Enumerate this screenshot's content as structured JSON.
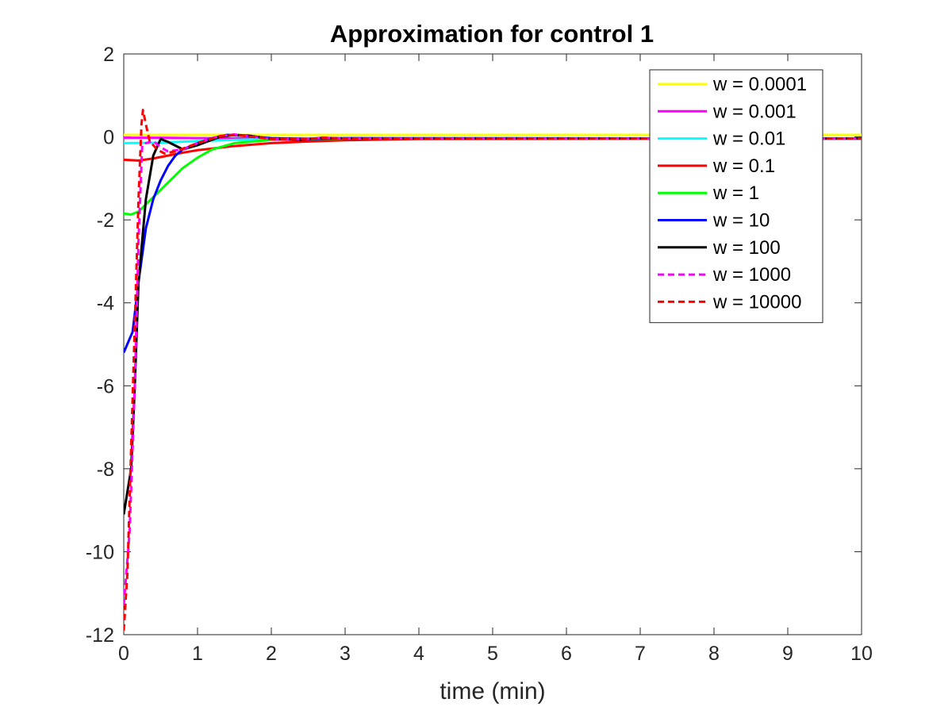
{
  "chart_data": {
    "type": "line",
    "title": "Approximation for control 1",
    "xlabel": "time (min)",
    "ylabel": "",
    "xlim": [
      0,
      10
    ],
    "ylim": [
      -12,
      2
    ],
    "xticks": [
      "0",
      "1",
      "2",
      "3",
      "4",
      "5",
      "6",
      "7",
      "8",
      "9",
      "10"
    ],
    "yticks": [
      "2",
      "0",
      "-2",
      "-4",
      "-6",
      "-8",
      "-10",
      "-12"
    ],
    "grid": false,
    "legend_position": "top-right",
    "series": [
      {
        "name": "w = 0.0001",
        "color": "#ffff00",
        "dash": "solid",
        "points": [
          [
            0,
            0.05
          ],
          [
            10,
            0.05
          ]
        ]
      },
      {
        "name": "w = 0.001",
        "color": "#ff00ff",
        "dash": "solid",
        "points": [
          [
            0,
            -0.02
          ],
          [
            0.5,
            -0.02
          ],
          [
            1.0,
            -0.03
          ],
          [
            2.0,
            -0.04
          ],
          [
            10,
            -0.04
          ]
        ]
      },
      {
        "name": "w = 0.01",
        "color": "#00ffff",
        "dash": "solid",
        "points": [
          [
            0,
            -0.15
          ],
          [
            0.5,
            -0.14
          ],
          [
            1.0,
            -0.1
          ],
          [
            1.5,
            -0.07
          ],
          [
            2.0,
            -0.05
          ],
          [
            3.0,
            -0.04
          ],
          [
            10,
            -0.04
          ]
        ]
      },
      {
        "name": "w = 0.1",
        "color": "#ff0000",
        "dash": "solid",
        "points": [
          [
            0,
            -0.55
          ],
          [
            0.2,
            -0.57
          ],
          [
            0.4,
            -0.52
          ],
          [
            0.6,
            -0.45
          ],
          [
            0.8,
            -0.38
          ],
          [
            1.0,
            -0.32
          ],
          [
            1.5,
            -0.22
          ],
          [
            2.0,
            -0.15
          ],
          [
            2.5,
            -0.11
          ],
          [
            3.0,
            -0.08
          ],
          [
            4.0,
            -0.05
          ],
          [
            10,
            -0.04
          ]
        ]
      },
      {
        "name": "w = 1",
        "color": "#00ff00",
        "dash": "solid",
        "points": [
          [
            0,
            -1.85
          ],
          [
            0.1,
            -1.87
          ],
          [
            0.2,
            -1.8
          ],
          [
            0.4,
            -1.45
          ],
          [
            0.6,
            -1.1
          ],
          [
            0.8,
            -0.75
          ],
          [
            1.0,
            -0.5
          ],
          [
            1.2,
            -0.3
          ],
          [
            1.5,
            -0.15
          ],
          [
            2.0,
            -0.07
          ],
          [
            3.0,
            -0.04
          ],
          [
            10,
            -0.04
          ]
        ]
      },
      {
        "name": "w = 10",
        "color": "#0000ff",
        "dash": "solid",
        "points": [
          [
            0,
            -5.2
          ],
          [
            0.12,
            -4.7
          ],
          [
            0.2,
            -3.5
          ],
          [
            0.3,
            -2.2
          ],
          [
            0.4,
            -1.5
          ],
          [
            0.5,
            -1.05
          ],
          [
            0.6,
            -0.7
          ],
          [
            0.7,
            -0.45
          ],
          [
            0.8,
            -0.3
          ],
          [
            1.0,
            -0.15
          ],
          [
            1.2,
            -0.03
          ],
          [
            1.4,
            0.05
          ],
          [
            1.6,
            0.03
          ],
          [
            2.0,
            -0.03
          ],
          [
            2.5,
            -0.05
          ],
          [
            3.0,
            -0.03
          ],
          [
            10,
            -0.04
          ]
        ]
      },
      {
        "name": "w = 100",
        "color": "#000000",
        "dash": "solid",
        "points": [
          [
            0,
            -9.1
          ],
          [
            0.1,
            -8.0
          ],
          [
            0.15,
            -6.0
          ],
          [
            0.2,
            -3.5
          ],
          [
            0.3,
            -1.5
          ],
          [
            0.4,
            -0.45
          ],
          [
            0.5,
            -0.05
          ],
          [
            0.6,
            -0.12
          ],
          [
            0.8,
            -0.3
          ],
          [
            1.0,
            -0.2
          ],
          [
            1.3,
            0.0
          ],
          [
            1.5,
            0.05
          ],
          [
            1.7,
            0.03
          ],
          [
            2.0,
            -0.05
          ],
          [
            2.4,
            -0.07
          ],
          [
            2.7,
            -0.02
          ],
          [
            3.0,
            -0.04
          ],
          [
            10,
            -0.04
          ]
        ]
      },
      {
        "name": "w = 1000",
        "color": "#ff00ff",
        "dash": "dashed",
        "points": [
          [
            0,
            -11.3
          ],
          [
            0.08,
            -9.5
          ],
          [
            0.15,
            -6.0
          ],
          [
            0.2,
            -2.5
          ],
          [
            0.25,
            -0.2
          ],
          [
            0.3,
            -0.15
          ],
          [
            0.4,
            -0.1
          ],
          [
            0.5,
            -0.25
          ],
          [
            0.6,
            -0.35
          ],
          [
            0.8,
            -0.3
          ],
          [
            1.0,
            -0.15
          ],
          [
            1.3,
            0.02
          ],
          [
            1.5,
            0.06
          ],
          [
            2.0,
            -0.05
          ],
          [
            2.5,
            -0.05
          ],
          [
            2.7,
            -0.02
          ],
          [
            3.0,
            -0.04
          ],
          [
            10,
            -0.04
          ]
        ]
      },
      {
        "name": "w = 10000",
        "color": "#ff0000",
        "dash": "dashed",
        "points": [
          [
            0,
            -11.9
          ],
          [
            0.05,
            -10.5
          ],
          [
            0.1,
            -7.5
          ],
          [
            0.15,
            -4.5
          ],
          [
            0.2,
            -1.5
          ],
          [
            0.24,
            0.3
          ],
          [
            0.26,
            0.65
          ],
          [
            0.3,
            0.3
          ],
          [
            0.35,
            -0.1
          ],
          [
            0.45,
            -0.3
          ],
          [
            0.55,
            -0.4
          ],
          [
            0.7,
            -0.35
          ],
          [
            1.0,
            -0.15
          ],
          [
            1.3,
            0.02
          ],
          [
            1.5,
            0.05
          ],
          [
            2.0,
            -0.05
          ],
          [
            2.5,
            -0.05
          ],
          [
            2.7,
            -0.02
          ],
          [
            3.0,
            -0.04
          ],
          [
            10,
            -0.04
          ]
        ]
      }
    ]
  }
}
